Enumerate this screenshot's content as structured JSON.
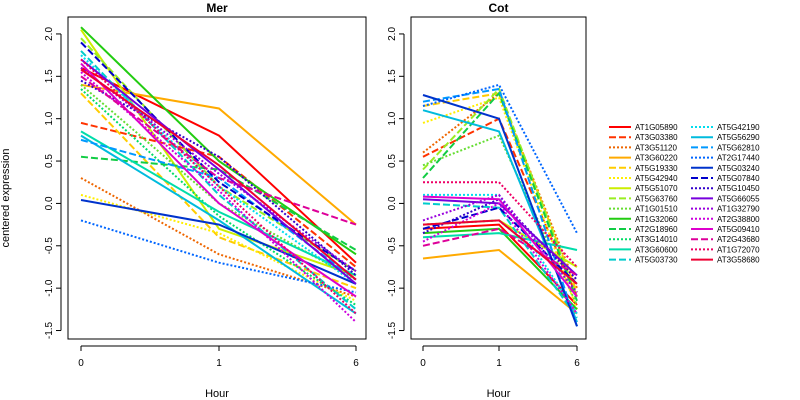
{
  "chart_data": {
    "type": "line",
    "ylabel": "centered expression",
    "xlabel": "Hour",
    "x": [
      "0",
      "1",
      "6"
    ],
    "yticks": [
      "-1.5",
      "-1.0",
      "-0.5",
      "0.0",
      "0.5",
      "1.0",
      "1.5",
      "2.0"
    ],
    "ylim": [
      -1.6,
      2.2
    ],
    "legend_position": "right",
    "panels": [
      {
        "title": "Mer",
        "series": [
          {
            "name": "AT1G05890",
            "color": "#ff0000",
            "dash": "solid",
            "values": [
              1.6,
              0.8,
              -0.7
            ]
          },
          {
            "name": "AT3G03380",
            "color": "#ff3300",
            "dash": "dashed",
            "values": [
              0.95,
              0.55,
              -0.75
            ]
          },
          {
            "name": "AT3G51120",
            "color": "#ee6600",
            "dash": "dotted",
            "values": [
              0.3,
              -0.6,
              -1.1
            ]
          },
          {
            "name": "AT3G60220",
            "color": "#ffaa00",
            "dash": "solid",
            "values": [
              1.4,
              1.12,
              -0.25
            ]
          },
          {
            "name": "AT5G19330",
            "color": "#ffcc00",
            "dash": "dashed",
            "values": [
              1.3,
              -0.4,
              -1.0
            ]
          },
          {
            "name": "AT5G42940",
            "color": "#ffee00",
            "dash": "dotted",
            "values": [
              0.1,
              -0.35,
              -1.15
            ]
          },
          {
            "name": "AT5G51070",
            "color": "#ccee00",
            "dash": "solid",
            "values": [
              2.05,
              -0.3,
              -0.85
            ]
          },
          {
            "name": "AT5G63760",
            "color": "#99ee22",
            "dash": "dashed",
            "values": [
              1.95,
              0.2,
              -0.8
            ]
          },
          {
            "name": "AT1G01510",
            "color": "#66dd33",
            "dash": "dotted",
            "values": [
              1.4,
              0.0,
              -0.9
            ]
          },
          {
            "name": "AT1G32060",
            "color": "#22cc11",
            "dash": "solid",
            "values": [
              2.08,
              0.5,
              -0.6
            ]
          },
          {
            "name": "AT2G18960",
            "color": "#11cc44",
            "dash": "dashed",
            "values": [
              0.55,
              0.4,
              -0.55
            ]
          },
          {
            "name": "AT3G14010",
            "color": "#00dd66",
            "dash": "dotted",
            "values": [
              1.35,
              -0.15,
              -1.2
            ]
          },
          {
            "name": "AT3G60600",
            "color": "#00ddaa",
            "dash": "solid",
            "values": [
              0.85,
              -0.1,
              -0.85
            ]
          },
          {
            "name": "AT5G03730",
            "color": "#00cccc",
            "dash": "dashed",
            "values": [
              1.8,
              0.1,
              -1.25
            ]
          },
          {
            "name": "AT5G42190",
            "color": "#00ddee",
            "dash": "dotted",
            "values": [
              1.75,
              0.2,
              -0.95
            ]
          },
          {
            "name": "AT5G56290",
            "color": "#00bbdd",
            "dash": "solid",
            "values": [
              0.8,
              -0.2,
              -1.3
            ]
          },
          {
            "name": "AT5G62810",
            "color": "#0099ff",
            "dash": "dashed",
            "values": [
              0.75,
              0.3,
              -0.9
            ]
          },
          {
            "name": "AT2G17440",
            "color": "#0066ff",
            "dash": "dotted",
            "values": [
              -0.2,
              -0.7,
              -1.05
            ]
          },
          {
            "name": "AT5G03240",
            "color": "#0033cc",
            "dash": "solid",
            "values": [
              0.04,
              -0.25,
              -0.95
            ]
          },
          {
            "name": "AT5G07840",
            "color": "#0000cc",
            "dash": "dashed",
            "values": [
              1.9,
              0.25,
              -0.8
            ]
          },
          {
            "name": "AT5G10450",
            "color": "#3300cc",
            "dash": "dotted",
            "values": [
              1.45,
              0.55,
              -0.85
            ]
          },
          {
            "name": "AT5G66055",
            "color": "#7700dd",
            "dash": "solid",
            "values": [
              1.7,
              0.4,
              -0.95
            ]
          },
          {
            "name": "AT1G32790",
            "color": "#9900dd",
            "dash": "dotted",
            "values": [
              1.6,
              0.35,
              -0.8
            ]
          },
          {
            "name": "AT2G38800",
            "color": "#cc00dd",
            "dash": "dotted",
            "values": [
              1.55,
              0.15,
              -1.4
            ]
          },
          {
            "name": "AT5G09410",
            "color": "#dd00cc",
            "dash": "solid",
            "values": [
              1.65,
              0.0,
              -1.1
            ]
          },
          {
            "name": "AT2G43680",
            "color": "#dd0099",
            "dash": "dashed",
            "values": [
              1.5,
              0.3,
              -0.25
            ]
          },
          {
            "name": "AT1G72070",
            "color": "#ee0066",
            "dash": "dotted",
            "values": [
              1.7,
              0.2,
              -1.3
            ]
          },
          {
            "name": "AT3G58680",
            "color": "#ee0033",
            "dash": "solid",
            "values": [
              1.58,
              0.45,
              -0.9
            ]
          }
        ]
      },
      {
        "title": "Cot",
        "series": [
          {
            "name": "AT1G05890",
            "color": "#ff0000",
            "dash": "solid",
            "values": [
              -0.3,
              -0.25,
              -1.2
            ]
          },
          {
            "name": "AT3G03380",
            "color": "#ff3300",
            "dash": "dashed",
            "values": [
              0.55,
              1.0,
              -1.1
            ]
          },
          {
            "name": "AT3G51120",
            "color": "#ee6600",
            "dash": "dotted",
            "values": [
              0.6,
              1.3,
              -1.0
            ]
          },
          {
            "name": "AT3G60220",
            "color": "#ffaa00",
            "dash": "solid",
            "values": [
              -0.65,
              -0.55,
              -1.3
            ]
          },
          {
            "name": "AT5G19330",
            "color": "#ffcc00",
            "dash": "dashed",
            "values": [
              1.15,
              1.3,
              -1.05
            ]
          },
          {
            "name": "AT5G42940",
            "color": "#ffee00",
            "dash": "dotted",
            "values": [
              0.95,
              1.25,
              -1.25
            ]
          },
          {
            "name": "AT5G51070",
            "color": "#ccee00",
            "dash": "solid",
            "values": [
              -0.25,
              -0.2,
              -0.75
            ]
          },
          {
            "name": "AT5G63760",
            "color": "#99ee22",
            "dash": "dashed",
            "values": [
              0.4,
              1.35,
              -1.1
            ]
          },
          {
            "name": "AT1G01510",
            "color": "#66dd33",
            "dash": "dotted",
            "values": [
              0.45,
              0.8,
              -1.2
            ]
          },
          {
            "name": "AT1G32060",
            "color": "#22cc11",
            "dash": "solid",
            "values": [
              -0.35,
              -0.3,
              -1.25
            ]
          },
          {
            "name": "AT2G18960",
            "color": "#11cc44",
            "dash": "dashed",
            "values": [
              0.3,
              1.3,
              -1.15
            ]
          },
          {
            "name": "AT3G14010",
            "color": "#00dd66",
            "dash": "dotted",
            "values": [
              -0.25,
              -0.2,
              -0.95
            ]
          },
          {
            "name": "AT3G60600",
            "color": "#00ddaa",
            "dash": "solid",
            "values": [
              -0.4,
              -0.35,
              -0.55
            ]
          },
          {
            "name": "AT5G03730",
            "color": "#00cccc",
            "dash": "dashed",
            "values": [
              0.0,
              -0.05,
              -1.35
            ]
          },
          {
            "name": "AT5G42190",
            "color": "#00ddee",
            "dash": "dotted",
            "values": [
              0.1,
              0.1,
              -1.3
            ]
          },
          {
            "name": "AT5G56290",
            "color": "#00bbdd",
            "dash": "solid",
            "values": [
              1.1,
              0.85,
              -1.4
            ]
          },
          {
            "name": "AT5G62810",
            "color": "#0099ff",
            "dash": "dashed",
            "values": [
              1.2,
              1.35,
              -1.45
            ]
          },
          {
            "name": "AT2G17440",
            "color": "#0066ff",
            "dash": "dotted",
            "values": [
              1.15,
              1.4,
              -0.35
            ]
          },
          {
            "name": "AT5G03240",
            "color": "#0033cc",
            "dash": "solid",
            "values": [
              1.28,
              1.0,
              -1.45
            ]
          },
          {
            "name": "AT5G07840",
            "color": "#0000cc",
            "dash": "dashed",
            "values": [
              -0.3,
              -0.05,
              -0.95
            ]
          },
          {
            "name": "AT5G10450",
            "color": "#3300cc",
            "dash": "dotted",
            "values": [
              -0.35,
              0.05,
              -0.9
            ]
          },
          {
            "name": "AT5G66055",
            "color": "#7700dd",
            "dash": "solid",
            "values": [
              0.05,
              0.0,
              -0.85
            ]
          },
          {
            "name": "AT1G32790",
            "color": "#9900dd",
            "dash": "dotted",
            "values": [
              -0.2,
              0.1,
              -1.05
            ]
          },
          {
            "name": "AT2G38800",
            "color": "#cc00dd",
            "dash": "dotted",
            "values": [
              -0.45,
              0.0,
              -1.3
            ]
          },
          {
            "name": "AT5G09410",
            "color": "#dd00cc",
            "dash": "solid",
            "values": [
              0.08,
              0.05,
              -1.1
            ]
          },
          {
            "name": "AT2G43680",
            "color": "#dd0099",
            "dash": "dashed",
            "values": [
              -0.5,
              -0.3,
              -0.85
            ]
          },
          {
            "name": "AT1G72070",
            "color": "#ee0066",
            "dash": "dotted",
            "values": [
              0.25,
              0.25,
              -0.75
            ]
          },
          {
            "name": "AT3G58680",
            "color": "#ee0033",
            "dash": "solid",
            "values": [
              -0.25,
              -0.2,
              -0.95
            ]
          }
        ]
      }
    ]
  }
}
